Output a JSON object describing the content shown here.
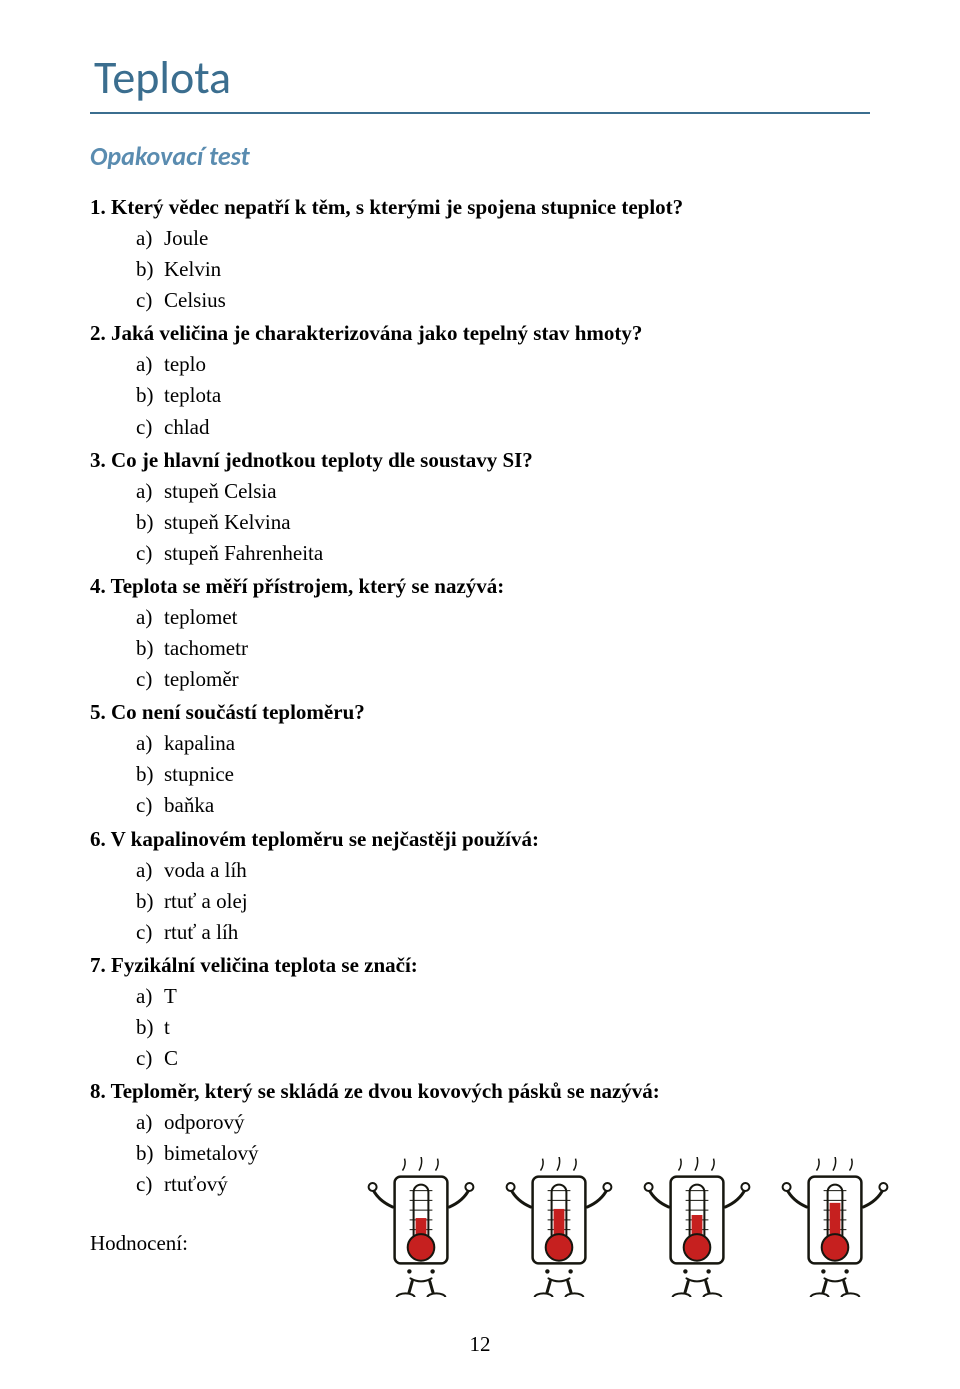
{
  "title": "Teplota",
  "subtitle": "Opakovací test",
  "page_number": "12",
  "hodnoceni_label": "Hodnocení:",
  "colors": {
    "heading": "#3b6e8f",
    "subtitle": "#5a8cb0",
    "text": "#000000",
    "svg_outline": "#16160f",
    "svg_red": "#c6201f",
    "svg_fill": "#ffffff"
  },
  "questions": [
    {
      "num": "1.",
      "text": "Který vědec nepatří k těm, s kterými je spojena stupnice teplot?",
      "options": [
        {
          "mark": "a)",
          "label": "Joule"
        },
        {
          "mark": "b)",
          "label": "Kelvin"
        },
        {
          "mark": "c)",
          "label": "Celsius"
        }
      ]
    },
    {
      "num": "2.",
      "text": "Jaká veličina je charakterizována jako tepelný stav hmoty?",
      "options": [
        {
          "mark": "a)",
          "label": "teplo"
        },
        {
          "mark": "b)",
          "label": "teplota"
        },
        {
          "mark": "c)",
          "label": "chlad"
        }
      ]
    },
    {
      "num": "3.",
      "text": "Co je hlavní jednotkou teploty dle soustavy SI?",
      "options": [
        {
          "mark": "a)",
          "label": "stupeň Celsia"
        },
        {
          "mark": "b)",
          "label": "stupeň Kelvina"
        },
        {
          "mark": "c)",
          "label": "stupeň Fahrenheita"
        }
      ]
    },
    {
      "num": "4.",
      "text": "Teplota se měří přístrojem, který se nazývá:",
      "options": [
        {
          "mark": "a)",
          "label": "teplomet"
        },
        {
          "mark": "b)",
          "label": "tachometr"
        },
        {
          "mark": "c)",
          "label": "teploměr"
        }
      ]
    },
    {
      "num": "5.",
      "text": "Co není součástí teploměru?",
      "options": [
        {
          "mark": "a)",
          "label": "kapalina"
        },
        {
          "mark": "b)",
          "label": "stupnice"
        },
        {
          "mark": "c)",
          "label": "baňka"
        }
      ]
    },
    {
      "num": "6.",
      "text": "V kapalinovém teploměru se nejčastěji používá:",
      "options": [
        {
          "mark": "a)",
          "label": "voda a líh"
        },
        {
          "mark": "b)",
          "label": "rtuť a olej"
        },
        {
          "mark": "c)",
          "label": "rtuť a líh"
        }
      ]
    },
    {
      "num": "7.",
      "text": "Fyzikální veličina teplota se značí:",
      "options": [
        {
          "mark": "a)",
          "label": "T"
        },
        {
          "mark": "b)",
          "label": "t"
        },
        {
          "mark": "c)",
          "label": "C"
        }
      ]
    },
    {
      "num": "8.",
      "text": "Teploměr, který se skládá ze dvou kovových pásků se nazývá:",
      "options": [
        {
          "mark": "a)",
          "label": "odporový"
        },
        {
          "mark": "b)",
          "label": "bimetalový"
        },
        {
          "mark": "c)",
          "label": "rtuťový"
        }
      ]
    }
  ],
  "figures": {
    "type": "infographic",
    "count": 4,
    "description": "four cartoon thermometer characters with arms, legs and faces",
    "width": 110,
    "height": 140,
    "fill_heights": [
      0.45,
      0.6,
      0.5,
      0.7
    ]
  }
}
